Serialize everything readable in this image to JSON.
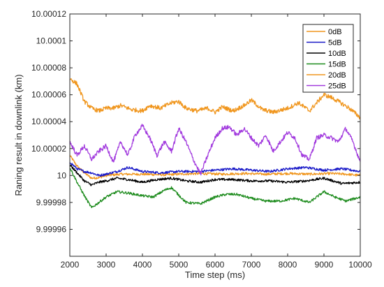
{
  "chart_data": {
    "type": "line",
    "title": "",
    "xlabel": "Time step (ms)",
    "ylabel": "Raning result in downlink (km)",
    "xlim": [
      2000,
      10000
    ],
    "ylim": [
      9.99994,
      10.00012
    ],
    "xticks": [
      2000,
      3000,
      4000,
      5000,
      6000,
      7000,
      8000,
      9000,
      10000
    ],
    "xtick_labels": [
      "2000",
      "3000",
      "4000",
      "5000",
      "6000",
      "7000",
      "8000",
      "9000",
      "10000"
    ],
    "yticks": [
      9.99996,
      9.99998,
      10.0,
      10.00002,
      10.00004,
      10.00006,
      10.00008,
      10.0001,
      10.00012
    ],
    "ytick_labels": [
      "9.99996",
      "9.99998",
      "10",
      "10.00002",
      "10.00004",
      "10.00006",
      "10.00008",
      "10.0001",
      "10.00012"
    ],
    "grid": false,
    "legend_position": "top-right",
    "series": [
      {
        "name": "0dB",
        "color": "#F0961E",
        "x": [
          2000,
          2200,
          2400,
          2600,
          2800,
          3000,
          3400,
          4000,
          4600,
          5000,
          5600,
          6200,
          6800,
          7400,
          8000,
          8600,
          9200,
          9600,
          10000
        ],
        "y": [
          10.000015,
          10.000007,
          10.000002,
          9.999998,
          9.9999985,
          10.0,
          10.000001,
          10.000001,
          10.0000005,
          10.000001,
          10.0000015,
          10.000001,
          10.0000015,
          10.000001,
          10.0000015,
          10.000001,
          10.0000015,
          10.000001,
          10.0
        ]
      },
      {
        "name": "5dB",
        "color": "#1A1AC8",
        "x": [
          2000,
          2200,
          2400,
          2600,
          2800,
          3000,
          3300,
          3600,
          4000,
          4500,
          5000,
          5600,
          6000,
          6500,
          7000,
          7500,
          8000,
          8500,
          9000,
          9500,
          10000
        ],
        "y": [
          10.00001,
          10.000005,
          10.000003,
          10.000002,
          10.0,
          10.000001,
          10.000003,
          10.000006,
          10.000003,
          10.000002,
          10.000003,
          10.000003,
          10.000004,
          10.000005,
          10.000004,
          10.000003,
          10.000005,
          10.000006,
          10.000004,
          10.000005,
          10.000003
        ]
      },
      {
        "name": "10dB",
        "color": "#000000",
        "x": [
          2000,
          2200,
          2400,
          2600,
          2800,
          3000,
          3300,
          3600,
          4000,
          4400,
          4800,
          5200,
          5600,
          6000,
          6500,
          7000,
          7500,
          8000,
          8500,
          9000,
          9500,
          10000
        ],
        "y": [
          10.000008,
          10.000002,
          9.999996,
          9.999993,
          9.999995,
          9.999996,
          9.999998,
          9.999997,
          9.999995,
          9.999997,
          9.999998,
          9.999996,
          9.999995,
          9.999997,
          9.999997,
          9.999996,
          9.999996,
          9.999995,
          9.999996,
          9.999998,
          9.999994,
          9.999995
        ]
      },
      {
        "name": "15dB",
        "color": "#1E8C1E",
        "x": [
          2000,
          2200,
          2400,
          2600,
          2800,
          3000,
          3300,
          3600,
          4000,
          4300,
          4600,
          4800,
          5200,
          5600,
          6000,
          6300,
          6600,
          7000,
          7400,
          7800,
          8200,
          8600,
          9000,
          9300,
          9600,
          10000
        ],
        "y": [
          10.000006,
          9.999995,
          9.999985,
          9.999976,
          9.99998,
          9.999984,
          9.999988,
          9.999987,
          9.999985,
          9.999984,
          9.999989,
          9.999991,
          9.99998,
          9.999979,
          9.999984,
          9.999986,
          9.999986,
          9.999983,
          9.999981,
          9.999981,
          9.999983,
          9.99998,
          9.999988,
          9.999984,
          9.999981,
          9.999984
        ]
      },
      {
        "name": "20dB",
        "color": "#F0961E",
        "x": [
          2000,
          2200,
          2400,
          2600,
          2800,
          3000,
          3200,
          3400,
          3700,
          4000,
          4200,
          4500,
          4800,
          5000,
          5200,
          5500,
          5800,
          6000,
          6200,
          6500,
          6800,
          7000,
          7300,
          7600,
          8000,
          8300,
          8600,
          9000,
          9200,
          9400,
          9700,
          10000
        ],
        "y": [
          10.000072,
          10.000068,
          10.000055,
          10.00005,
          10.000048,
          10.00005,
          10.00005,
          10.000052,
          10.000049,
          10.000048,
          10.000052,
          10.00005,
          10.000054,
          10.000055,
          10.00005,
          10.000048,
          10.00005,
          10.000047,
          10.000051,
          10.000048,
          10.000052,
          10.000056,
          10.000049,
          10.000047,
          10.00005,
          10.000054,
          10.000048,
          10.00006,
          10.000058,
          10.000055,
          10.00005,
          10.000043
        ]
      },
      {
        "name": "25dB",
        "color": "#A23BDE",
        "x": [
          2000,
          2200,
          2400,
          2600,
          2800,
          3000,
          3200,
          3400,
          3600,
          3800,
          4000,
          4200,
          4400,
          4600,
          4800,
          5000,
          5200,
          5400,
          5600,
          5800,
          6000,
          6200,
          6400,
          6600,
          6800,
          7000,
          7200,
          7400,
          7600,
          7800,
          8000,
          8200,
          8400,
          8600,
          8800,
          9000,
          9200,
          9400,
          9600,
          9800,
          10000
        ],
        "y": [
          10.000025,
          10.000015,
          10.000022,
          10.000012,
          10.000018,
          10.000022,
          10.00001,
          10.000025,
          10.000015,
          10.00003,
          10.000037,
          10.000028,
          10.000015,
          10.000025,
          10.000018,
          10.000035,
          10.000025,
          10.000012,
          10.000001,
          10.000015,
          10.000028,
          10.000035,
          10.000036,
          10.00003,
          10.000035,
          10.000028,
          10.000022,
          10.00003,
          10.000018,
          10.000025,
          10.000032,
          10.000028,
          10.000015,
          10.000012,
          10.000028,
          10.00003,
          10.000028,
          10.000025,
          10.000035,
          10.000025,
          10.00001
        ]
      }
    ]
  }
}
